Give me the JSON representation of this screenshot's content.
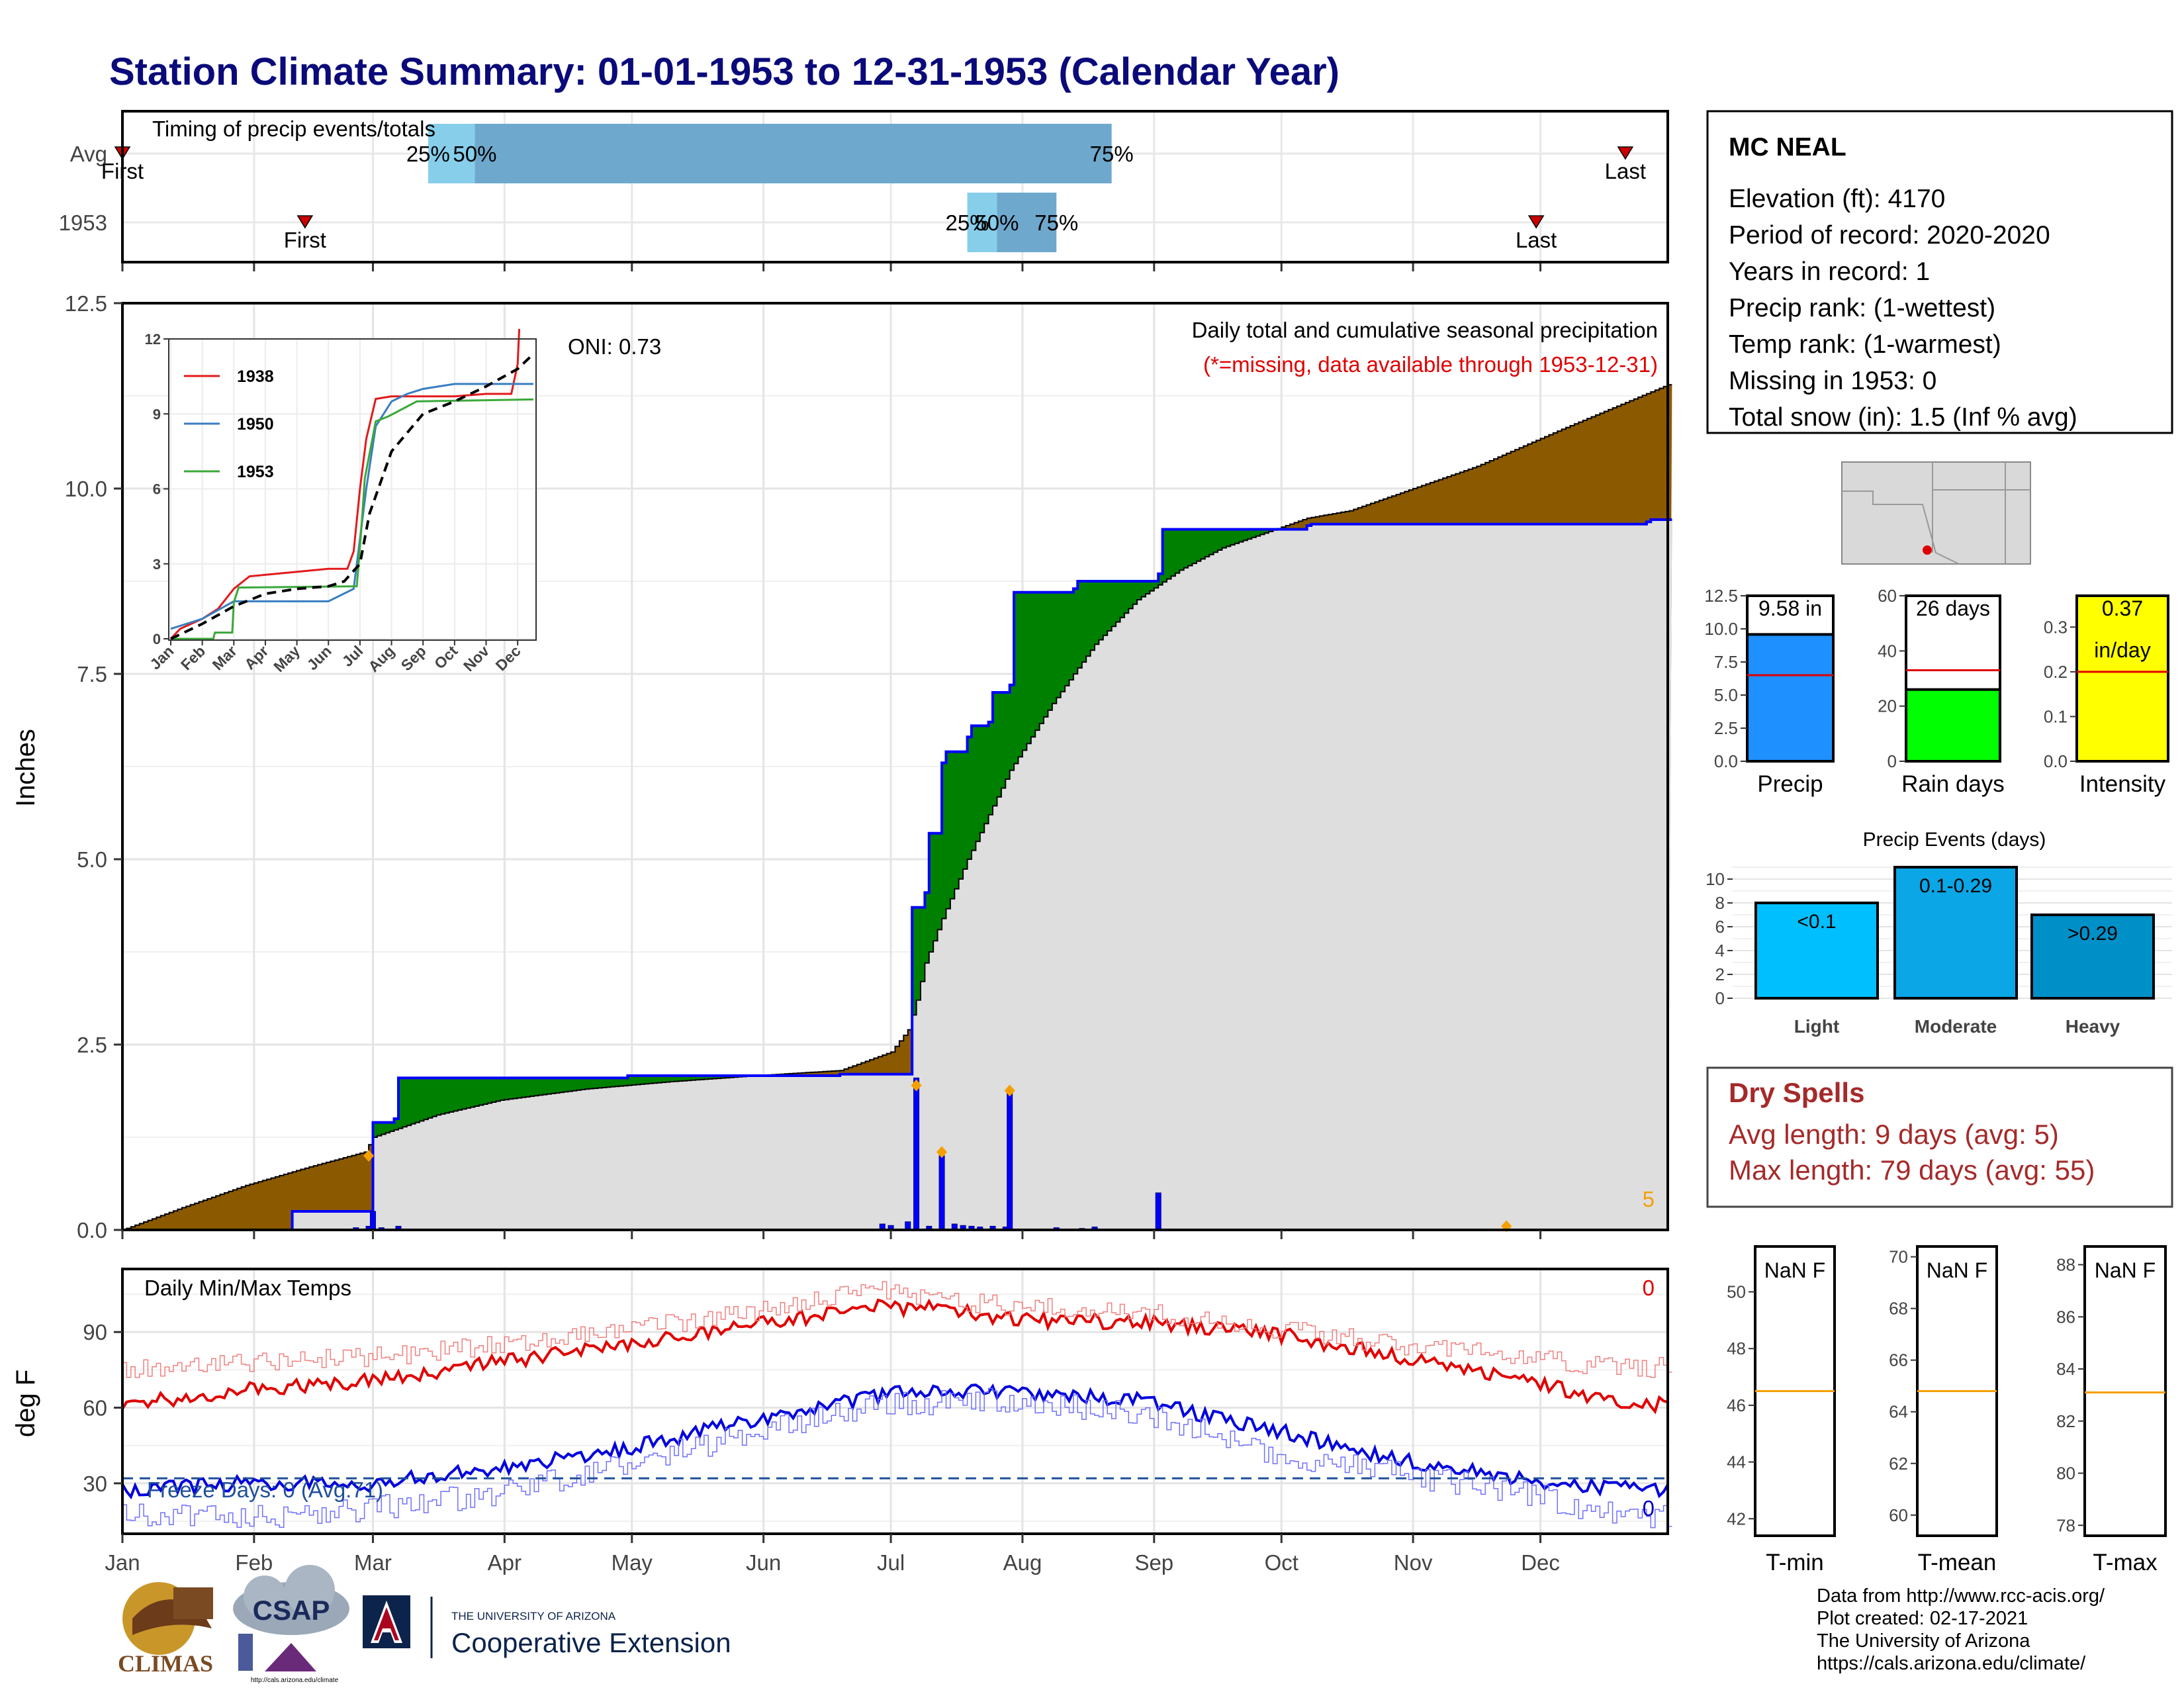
{
  "page": {
    "title": "Station Climate Summary: 01-01-1953 to 12-31-1953 (Calendar Year)",
    "colors": {
      "title": "#0a0a7a",
      "dry_spells": "#a52a2a"
    }
  },
  "station_box": {
    "name": "MC NEAL",
    "lines": [
      "Elevation (ft): 4170",
      "Period of record: 2020-2020",
      "Years in record: 1",
      "Precip rank:  (1-wettest)",
      "Temp rank:  (1-warmest)",
      "Missing in 1953: 0",
      "Total snow (in): 1.5 (Inf % avg)"
    ]
  },
  "timing_panel": {
    "title": "Timing of precip events/totals",
    "rows": [
      {
        "label": "Avg",
        "first_label": "First",
        "last_label": "Last",
        "q25_label": "25%",
        "q50_label": "50%",
        "q75_label": "75%"
      },
      {
        "label": "1953",
        "first_label": "First",
        "last_label": "Last",
        "q25_label": "25%",
        "q50_label": "50%",
        "q75_label": "75%"
      }
    ]
  },
  "precip_panel": {
    "ylabel": "Inches",
    "caption": "Daily total and cumulative seasonal precipitation",
    "missing_note": "(*=missing, data available through 1953-12-31)",
    "oni": "ONI: 0.73",
    "count_label": "5",
    "yticks": [
      "0.0",
      "2.5",
      "5.0",
      "7.5",
      "10.0",
      "12.5"
    ]
  },
  "inset": {
    "yticks": [
      "0",
      "3",
      "6",
      "9",
      "12"
    ],
    "months": [
      "Jan",
      "Feb",
      "Mar",
      "Apr",
      "May",
      "Jun",
      "Jul",
      "Aug",
      "Sep",
      "Oct",
      "Nov",
      "Dec"
    ],
    "legend": [
      "1938",
      "1950",
      "1953"
    ],
    "colors": [
      "#e31a1c",
      "#3a7dc0",
      "#3aa83a"
    ]
  },
  "temp_panel": {
    "ylabel": "deg F",
    "caption": "Daily Min/Max Temps",
    "freeze": "Freeze Days: 0 (Avg:71)",
    "count_max": "0",
    "count_min": "0",
    "yticks": [
      "30",
      "60",
      "90"
    ],
    "months": [
      "Jan",
      "Feb",
      "Mar",
      "Apr",
      "May",
      "Jun",
      "Jul",
      "Aug",
      "Sep",
      "Oct",
      "Nov",
      "Dec"
    ]
  },
  "summary_bars": [
    {
      "label": "Precip",
      "value_label": "9.58 in",
      "yticks": [
        "0.0",
        "2.5",
        "5.0",
        "7.5",
        "10.0",
        "12.5"
      ],
      "color": "#1e90ff"
    },
    {
      "label": "Rain days",
      "value_label": "26 days",
      "yticks": [
        "0",
        "20",
        "40",
        "60"
      ],
      "color": "#00ff00"
    },
    {
      "label": "Intensity",
      "value_label": "0.37",
      "value_unit": "in/day",
      "yticks": [
        "0.0",
        "0.1",
        "0.2",
        "0.3"
      ],
      "color": "#ffff00"
    }
  ],
  "events_panel": {
    "title": "Precip Events (days)",
    "yticks": [
      "0",
      "2",
      "4",
      "6",
      "8",
      "10"
    ],
    "bars": [
      {
        "label": "Light",
        "range": "<0.1"
      },
      {
        "label": "Moderate",
        "range": "0.1-0.29"
      },
      {
        "label": "Heavy",
        "range": ">0.29"
      }
    ],
    "colors": [
      "#00bfff",
      "#0aa6e6",
      "#0090c8"
    ]
  },
  "dry_spells": {
    "title": "Dry Spells",
    "avg_line": "Avg length: 9 days (avg: 5)",
    "max_line": "Max length: 79 days (avg: 55)"
  },
  "temp_boxes": [
    {
      "label": "T-min",
      "value_label": "NaN F",
      "yticks": [
        "42",
        "44",
        "46",
        "48",
        "50"
      ]
    },
    {
      "label": "T-mean",
      "value_label": "NaN F",
      "yticks": [
        "60",
        "62",
        "64",
        "66",
        "68",
        "70"
      ]
    },
    {
      "label": "T-max",
      "value_label": "NaN F",
      "yticks": [
        "78",
        "80",
        "82",
        "84",
        "86",
        "88"
      ]
    }
  ],
  "footer": {
    "credits": [
      "Data from http://www.rcc-acis.org/",
      "Plot created: 02-17-2021",
      "The University of Arizona",
      "https://cals.arizona.edu/climate/"
    ],
    "logos": {
      "climas": "CLIMAS",
      "csap": "CSAP",
      "csap_url": "http://cals.arizona.edu/climate",
      "ua_small": "THE UNIVERSITY OF ARIZONA",
      "ua_big": "Cooperative Extension"
    }
  },
  "chart_data": [
    {
      "type": "area",
      "title": "Daily total and cumulative seasonal precipitation",
      "ylabel": "Inches",
      "ylim": [
        0,
        12.5
      ],
      "x_units": "day of year",
      "series": [
        {
          "name": "Avg",
          "x": [
            1,
            15,
            30,
            45,
            58,
            60,
            75,
            90,
            110,
            130,
            150,
            170,
            182,
            186,
            188,
            190,
            194,
            200,
            210,
            220,
            230,
            240,
            250,
            260,
            270,
            280,
            290,
            300,
            320,
            340,
            365
          ],
          "y": [
            0,
            0.3,
            0.6,
            0.85,
            1.05,
            1.25,
            1.55,
            1.75,
            1.9,
            2.0,
            2.08,
            2.15,
            2.4,
            2.7,
            3.1,
            3.6,
            4.2,
            5.0,
            6.2,
            7.1,
            7.9,
            8.5,
            8.9,
            9.2,
            9.4,
            9.6,
            9.7,
            9.9,
            10.3,
            10.8,
            11.4
          ]
        },
        {
          "name": "1953",
          "x": [
            1,
            40,
            41,
            59,
            60,
            65,
            66,
            120,
            170,
            186,
            187,
            190,
            191,
            194,
            195,
            200,
            201,
            205,
            206,
            210,
            211,
            225,
            226,
            245,
            246,
            280,
            281,
            360,
            361,
            365
          ],
          "y": [
            0,
            0,
            0.25,
            0.25,
            1.45,
            1.5,
            2.05,
            2.08,
            2.1,
            2.1,
            4.35,
            4.55,
            5.35,
            6.3,
            6.45,
            6.65,
            6.8,
            6.85,
            7.25,
            7.35,
            8.6,
            8.65,
            8.75,
            8.85,
            9.45,
            9.5,
            9.52,
            9.55,
            9.58,
            9.58
          ]
        }
      ],
      "daily": {
        "x": [
          56,
          59,
          60,
          62,
          66,
          180,
          182,
          186,
          188,
          191,
          194,
          197,
          199,
          201,
          203,
          206,
          209,
          210,
          221,
          227,
          230,
          245
        ],
        "y": [
          0.03,
          0.05,
          0.25,
          0.03,
          0.05,
          0.08,
          0.06,
          0.11,
          2.05,
          0.05,
          1.0,
          0.08,
          0.06,
          0.05,
          0.04,
          0.05,
          0.04,
          1.85,
          0.03,
          0.02,
          0.04,
          0.5
        ]
      },
      "snow_markers": [
        {
          "x": 59,
          "y": 1.0
        },
        {
          "x": 188,
          "y": 1.95
        },
        {
          "x": 194,
          "y": 1.05
        },
        {
          "x": 210,
          "y": 1.88
        },
        {
          "x": 327,
          "y": 0.05
        }
      ]
    },
    {
      "type": "line",
      "title": "inset cumulative precipitation",
      "ylim": [
        0,
        12
      ],
      "x_units": "month",
      "series": [
        {
          "name": "1938",
          "x": [
            0,
            0.3,
            1,
            1.5,
            2,
            2.5,
            5,
            5.6,
            5.8,
            6,
            6.2,
            6.5,
            7,
            8,
            9,
            10,
            10.8,
            11,
            11.05
          ],
          "y": [
            0,
            0.4,
            0.8,
            1.2,
            2.0,
            2.5,
            2.8,
            2.8,
            3.5,
            6.0,
            8.0,
            9.6,
            9.7,
            9.7,
            9.7,
            9.8,
            9.8,
            11.0,
            12.4
          ]
        },
        {
          "name": "1950",
          "x": [
            0,
            1,
            2,
            2.5,
            5,
            5.8,
            6,
            6.2,
            6.5,
            7,
            7.5,
            8,
            9,
            10,
            11,
            11.5
          ],
          "y": [
            0.4,
            0.8,
            1.5,
            1.5,
            1.5,
            2.0,
            4.0,
            6.0,
            8.5,
            9.5,
            9.8,
            10.0,
            10.2,
            10.2,
            10.2,
            10.2
          ]
        },
        {
          "name": "1953",
          "x": [
            0,
            1.35,
            1.4,
            1.95,
            2.0,
            2.15,
            5.9,
            6.05,
            6.15,
            6.5,
            6.9,
            7.8,
            11.5
          ],
          "y": [
            0,
            0,
            0.25,
            0.25,
            1.45,
            2.05,
            2.1,
            4.5,
            6.4,
            8.7,
            8.9,
            9.5,
            9.58
          ]
        },
        {
          "name": "Avg",
          "x": [
            0,
            1,
            2,
            3,
            4,
            5,
            5.5,
            6,
            6.3,
            7,
            8,
            9,
            10,
            11,
            11.5
          ],
          "y": [
            0,
            0.6,
            1.3,
            1.8,
            2.0,
            2.1,
            2.3,
            3.0,
            5.0,
            7.5,
            9.0,
            9.5,
            10.1,
            10.8,
            11.4
          ]
        }
      ]
    },
    {
      "type": "line",
      "title": "Daily Min/Max Temps",
      "ylabel": "deg F",
      "ylim": [
        10,
        115
      ],
      "x_units": "day of year",
      "freeze_line": 32,
      "series": [
        {
          "name": "normal max",
          "x": [
            1,
            30,
            60,
            90,
            120,
            150,
            180,
            195,
            210,
            240,
            270,
            300,
            330,
            350,
            365
          ],
          "y": [
            61,
            67,
            71,
            78,
            85,
            93,
            100,
            99,
            95,
            94,
            90,
            81,
            72,
            63,
            61
          ]
        },
        {
          "name": "normal min",
          "x": [
            1,
            30,
            60,
            90,
            120,
            150,
            180,
            195,
            210,
            240,
            270,
            300,
            330,
            350,
            365
          ],
          "y": [
            27,
            30,
            30,
            36,
            44,
            55,
            65,
            67,
            66,
            63,
            52,
            40,
            32,
            28,
            28
          ]
        },
        {
          "name": "1953 max",
          "x": [
            1,
            30,
            60,
            90,
            120,
            150,
            170,
            180,
            195,
            210,
            240,
            270,
            300,
            330,
            350,
            365
          ],
          "y": [
            75,
            78,
            80,
            85,
            91,
            98,
            105,
            106,
            103,
            100,
            98,
            92,
            85,
            80,
            76,
            76
          ]
        },
        {
          "name": "1953 min",
          "x": [
            1,
            30,
            60,
            90,
            120,
            150,
            180,
            195,
            210,
            240,
            270,
            300,
            330,
            350,
            365
          ],
          "y": [
            17,
            16,
            20,
            26,
            38,
            50,
            61,
            62,
            63,
            58,
            43,
            34,
            27,
            18,
            17
          ]
        }
      ]
    },
    {
      "type": "bar",
      "title": "summary",
      "series": [
        {
          "name": "Precip",
          "value": 9.58,
          "average": 6.5,
          "ylim": [
            0,
            12.5
          ]
        },
        {
          "name": "Rain days",
          "value": 26,
          "average": 33,
          "ylim": [
            0,
            60
          ]
        },
        {
          "name": "Intensity",
          "value": 0.37,
          "average": 0.2,
          "ylim": [
            0,
            0.37
          ]
        }
      ]
    },
    {
      "type": "bar",
      "title": "Precip Events (days)",
      "categories": [
        "Light",
        "Moderate",
        "Heavy"
      ],
      "values": [
        8,
        11,
        7
      ],
      "ylim": [
        0,
        11
      ]
    },
    {
      "type": "bar",
      "title": "temperature boxes",
      "series": [
        {
          "name": "T-min",
          "average": 46.5,
          "ylim": [
            41.4,
            51.6
          ]
        },
        {
          "name": "T-mean",
          "average": 64.8,
          "ylim": [
            59.2,
            70.4
          ]
        },
        {
          "name": "T-max",
          "average": 83.1,
          "ylim": [
            77.6,
            88.7
          ]
        }
      ]
    },
    {
      "type": "bar",
      "title": "Timing of precip events/totals",
      "x_units": "day of year",
      "rows": [
        {
          "name": "Avg",
          "first": 1,
          "q25": 73,
          "q50": 84,
          "q75": 234,
          "last": 355
        },
        {
          "name": "1953",
          "first": 44,
          "q25": 200,
          "q50": 207,
          "q75": 221,
          "last": 334
        }
      ]
    }
  ]
}
